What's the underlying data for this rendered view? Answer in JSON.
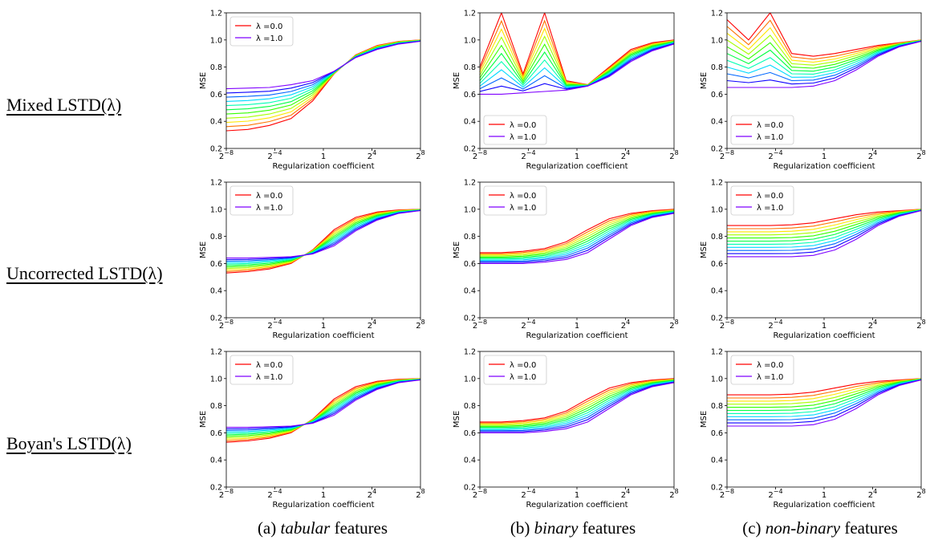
{
  "row_labels": [
    "Mixed LSTD(λ)",
    "Uncorrected LSTD(λ)",
    "Boyan's LSTD(λ)"
  ],
  "column_captions": [
    {
      "prefix": "(a) ",
      "emph": "tabular",
      "suffix": " features"
    },
    {
      "prefix": "(b) ",
      "emph": "binary",
      "suffix": " features"
    },
    {
      "prefix": "(c) ",
      "emph": "non-binary",
      "suffix": " features"
    }
  ],
  "colors": {
    "lambda_0": "#ff0000",
    "lambda_1": "#7f00ff",
    "axis": "#000000"
  },
  "chart_data": [
    {
      "type": "line",
      "row": "Mixed LSTD(λ)",
      "column": "tabular",
      "xlabel": "Regularization coefficient",
      "ylabel": "MSE",
      "xscale": "log2",
      "xlim": [
        -8,
        8
      ],
      "ylim": [
        0.2,
        1.2
      ],
      "xticks": [
        "2^-8",
        "2^-4",
        "1",
        "2^4",
        "2^8"
      ],
      "yticks": [
        "0.2",
        "0.4",
        "0.6",
        "0.8",
        "1.0",
        "1.2"
      ],
      "legend": {
        "placement": "top-left",
        "entries": [
          "λ =0.0",
          "λ =1.0"
        ]
      },
      "lambda_series": {
        "count": 11,
        "start": 0.0,
        "end": 1.0
      },
      "curves": {
        "lambda_0": [
          0.33,
          0.34,
          0.37,
          0.42,
          0.55,
          0.75,
          0.89,
          0.96,
          0.99,
          1.0
        ],
        "lambda_1": [
          0.64,
          0.645,
          0.65,
          0.67,
          0.7,
          0.77,
          0.87,
          0.93,
          0.97,
          0.99
        ]
      }
    },
    {
      "type": "line",
      "row": "Mixed LSTD(λ)",
      "column": "binary",
      "xlabel": "Regularization coefficient",
      "ylabel": "MSE",
      "xscale": "log2",
      "xlim": [
        -8,
        8
      ],
      "ylim": [
        0.2,
        1.2
      ],
      "xticks": [
        "2^-8",
        "2^-4",
        "1",
        "2^4",
        "2^8"
      ],
      "yticks": [
        "0.2",
        "0.4",
        "0.6",
        "0.8",
        "1.0",
        "1.2"
      ],
      "legend": {
        "placement": "bottom-left",
        "entries": [
          "λ =0.0",
          "λ =1.0"
        ]
      },
      "lambda_series": {
        "count": 11,
        "start": 0.0,
        "end": 1.0
      },
      "curves": {
        "lambda_0": [
          0.8,
          1.2,
          0.75,
          1.2,
          0.7,
          0.67,
          0.8,
          0.93,
          0.98,
          1.0
        ],
        "lambda_1": [
          0.6,
          0.6,
          0.61,
          0.62,
          0.63,
          0.66,
          0.73,
          0.84,
          0.92,
          0.97
        ]
      }
    },
    {
      "type": "line",
      "row": "Mixed LSTD(λ)",
      "column": "non-binary",
      "xlabel": "Regularization coefficient",
      "ylabel": "MSE",
      "xscale": "log2",
      "xlim": [
        -8,
        8
      ],
      "ylim": [
        0.2,
        1.2
      ],
      "xticks": [
        "2^-8",
        "2^-4",
        "1",
        "2^4",
        "2^8"
      ],
      "yticks": [
        "0.2",
        "0.4",
        "0.6",
        "0.8",
        "1.0",
        "1.2"
      ],
      "legend": {
        "placement": "bottom-left",
        "entries": [
          "λ =0.0",
          "λ =1.0"
        ]
      },
      "lambda_series": {
        "count": 11,
        "start": 0.0,
        "end": 1.0
      },
      "curves": {
        "lambda_0": [
          1.15,
          1.0,
          1.2,
          0.9,
          0.88,
          0.9,
          0.93,
          0.96,
          0.98,
          1.0
        ],
        "lambda_1": [
          0.65,
          0.65,
          0.65,
          0.65,
          0.66,
          0.7,
          0.78,
          0.88,
          0.95,
          0.99
        ]
      }
    },
    {
      "type": "line",
      "row": "Uncorrected LSTD(λ)",
      "column": "tabular",
      "xlabel": "Regularization coefficient",
      "ylabel": "MSE",
      "xscale": "log2",
      "xlim": [
        -8,
        8
      ],
      "ylim": [
        0.2,
        1.2
      ],
      "xticks": [
        "2^-8",
        "2^-4",
        "1",
        "2^4",
        "2^8"
      ],
      "yticks": [
        "0.2",
        "0.4",
        "0.6",
        "0.8",
        "1.0",
        "1.2"
      ],
      "legend": {
        "placement": "top-left",
        "entries": [
          "λ =0.0",
          "λ =1.0"
        ]
      },
      "lambda_series": {
        "count": 11,
        "start": 0.0,
        "end": 1.0
      },
      "curves": {
        "lambda_0": [
          0.53,
          0.54,
          0.56,
          0.6,
          0.7,
          0.85,
          0.94,
          0.98,
          0.995,
          1.0
        ],
        "lambda_1": [
          0.64,
          0.64,
          0.645,
          0.65,
          0.67,
          0.73,
          0.84,
          0.92,
          0.97,
          0.99
        ]
      }
    },
    {
      "type": "line",
      "row": "Uncorrected LSTD(λ)",
      "column": "binary",
      "xlabel": "Regularization coefficient",
      "ylabel": "MSE",
      "xscale": "log2",
      "xlim": [
        -8,
        8
      ],
      "ylim": [
        0.2,
        1.2
      ],
      "xticks": [
        "2^-8",
        "2^-4",
        "1",
        "2^4",
        "2^8"
      ],
      "yticks": [
        "0.2",
        "0.4",
        "0.6",
        "0.8",
        "1.0",
        "1.2"
      ],
      "legend": {
        "placement": "top-left",
        "entries": [
          "λ =0.0",
          "λ =1.0"
        ]
      },
      "lambda_series": {
        "count": 11,
        "start": 0.0,
        "end": 1.0
      },
      "curves": {
        "lambda_0": [
          0.68,
          0.68,
          0.69,
          0.71,
          0.76,
          0.85,
          0.93,
          0.97,
          0.99,
          1.0
        ],
        "lambda_1": [
          0.6,
          0.6,
          0.6,
          0.61,
          0.63,
          0.68,
          0.78,
          0.88,
          0.94,
          0.97
        ]
      }
    },
    {
      "type": "line",
      "row": "Uncorrected LSTD(λ)",
      "column": "non-binary",
      "xlabel": "Regularization coefficient",
      "ylabel": "MSE",
      "xscale": "log2",
      "xlim": [
        -8,
        8
      ],
      "ylim": [
        0.2,
        1.2
      ],
      "xticks": [
        "2^-8",
        "2^-4",
        "1",
        "2^4",
        "2^8"
      ],
      "yticks": [
        "0.2",
        "0.4",
        "0.6",
        "0.8",
        "1.0",
        "1.2"
      ],
      "legend": {
        "placement": "top-left",
        "entries": [
          "λ =0.0",
          "λ =1.0"
        ]
      },
      "lambda_series": {
        "count": 11,
        "start": 0.0,
        "end": 1.0
      },
      "curves": {
        "lambda_0": [
          0.88,
          0.88,
          0.88,
          0.885,
          0.9,
          0.93,
          0.96,
          0.98,
          0.99,
          1.0
        ],
        "lambda_1": [
          0.65,
          0.65,
          0.65,
          0.65,
          0.66,
          0.7,
          0.78,
          0.88,
          0.95,
          0.99
        ]
      }
    },
    {
      "type": "line",
      "row": "Boyan's LSTD(λ)",
      "column": "tabular",
      "xlabel": "Regularization coefficient",
      "ylabel": "MSE",
      "xscale": "log2",
      "xlim": [
        -8,
        8
      ],
      "ylim": [
        0.2,
        1.2
      ],
      "xticks": [
        "2^-8",
        "2^-4",
        "1",
        "2^4",
        "2^8"
      ],
      "yticks": [
        "0.2",
        "0.4",
        "0.6",
        "0.8",
        "1.0",
        "1.2"
      ],
      "legend": {
        "placement": "top-left",
        "entries": [
          "λ =0.0",
          "λ =1.0"
        ]
      },
      "lambda_series": {
        "count": 11,
        "start": 0.0,
        "end": 1.0
      },
      "curves": {
        "lambda_0": [
          0.53,
          0.54,
          0.56,
          0.6,
          0.7,
          0.85,
          0.94,
          0.98,
          0.995,
          1.0
        ],
        "lambda_1": [
          0.64,
          0.64,
          0.645,
          0.65,
          0.67,
          0.73,
          0.84,
          0.92,
          0.97,
          0.99
        ]
      }
    },
    {
      "type": "line",
      "row": "Boyan's LSTD(λ)",
      "column": "binary",
      "xlabel": "Regularization coefficient",
      "ylabel": "MSE",
      "xscale": "log2",
      "xlim": [
        -8,
        8
      ],
      "ylim": [
        0.2,
        1.2
      ],
      "xticks": [
        "2^-8",
        "2^-4",
        "1",
        "2^4",
        "2^8"
      ],
      "yticks": [
        "0.2",
        "0.4",
        "0.6",
        "0.8",
        "1.0",
        "1.2"
      ],
      "legend": {
        "placement": "top-left",
        "entries": [
          "λ =0.0",
          "λ =1.0"
        ]
      },
      "lambda_series": {
        "count": 11,
        "start": 0.0,
        "end": 1.0
      },
      "curves": {
        "lambda_0": [
          0.68,
          0.68,
          0.69,
          0.71,
          0.76,
          0.85,
          0.93,
          0.97,
          0.99,
          1.0
        ],
        "lambda_1": [
          0.6,
          0.6,
          0.6,
          0.61,
          0.63,
          0.68,
          0.78,
          0.88,
          0.94,
          0.97
        ]
      }
    },
    {
      "type": "line",
      "row": "Boyan's LSTD(λ)",
      "column": "non-binary",
      "xlabel": "Regularization coefficient",
      "ylabel": "MSE",
      "xscale": "log2",
      "xlim": [
        -8,
        8
      ],
      "ylim": [
        0.2,
        1.2
      ],
      "xticks": [
        "2^-8",
        "2^-4",
        "1",
        "2^4",
        "2^8"
      ],
      "yticks": [
        "0.2",
        "0.4",
        "0.6",
        "0.8",
        "1.0",
        "1.2"
      ],
      "legend": {
        "placement": "top-left",
        "entries": [
          "λ =0.0",
          "λ =1.0"
        ]
      },
      "lambda_series": {
        "count": 11,
        "start": 0.0,
        "end": 1.0
      },
      "curves": {
        "lambda_0": [
          0.88,
          0.88,
          0.88,
          0.885,
          0.9,
          0.93,
          0.96,
          0.98,
          0.99,
          1.0
        ],
        "lambda_1": [
          0.65,
          0.65,
          0.65,
          0.65,
          0.66,
          0.7,
          0.78,
          0.88,
          0.95,
          0.99
        ]
      }
    }
  ]
}
